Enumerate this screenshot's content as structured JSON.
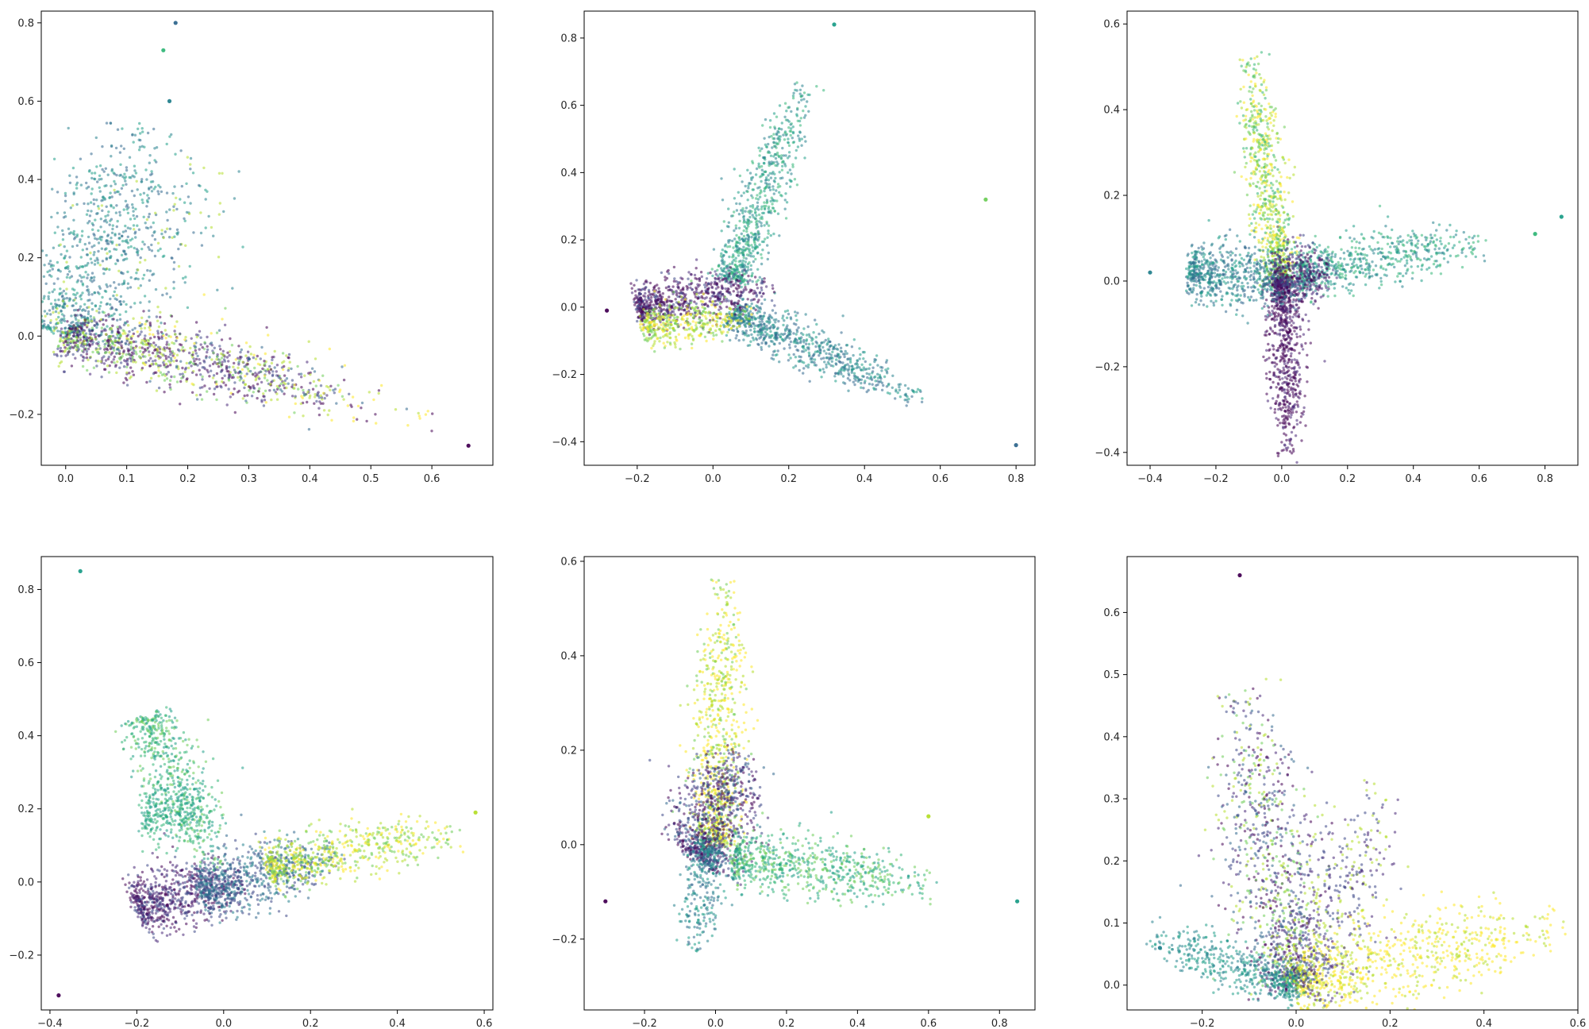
{
  "colors": {
    "viridis": [
      "#440154",
      "#482878",
      "#3e4989",
      "#31688e",
      "#26828e",
      "#1f9e89",
      "#35b779",
      "#6ece58",
      "#b5de2b",
      "#fde725"
    ]
  },
  "chart_data": [
    {
      "type": "scatter",
      "title": "",
      "xlabel": "",
      "ylabel": "",
      "xlim": [
        -0.04,
        0.7
      ],
      "ylim": [
        -0.33,
        0.83
      ],
      "xticks": [
        "0.0",
        "0.1",
        "0.2",
        "0.3",
        "0.4",
        "0.5",
        "0.6"
      ],
      "xtick_values": [
        0,
        0.1,
        0.2,
        0.3,
        0.4,
        0.5,
        0.6
      ],
      "yticks": [
        "−0.2",
        "0.0",
        "0.2",
        "0.4",
        "0.6",
        "0.8"
      ],
      "ytick_values": [
        -0.2,
        0,
        0.2,
        0.4,
        0.6,
        0.8
      ],
      "grid": false,
      "arms": [
        {
          "from": [
            0,
            0
          ],
          "to": [
            0.1,
            0.43
          ],
          "n": 700,
          "spread": 0.045,
          "colors": [
            4,
            5,
            3
          ]
        },
        {
          "from": [
            0,
            0
          ],
          "to": [
            0.2,
            0.35
          ],
          "n": 300,
          "spread": 0.05,
          "colors": [
            4,
            3,
            5,
            8
          ]
        },
        {
          "from": [
            0,
            0
          ],
          "to": [
            0.36,
            -0.12
          ],
          "n": 900,
          "spread": 0.03,
          "colors": [
            0,
            1,
            2,
            7,
            8
          ]
        },
        {
          "from": [
            0.1,
            0.0
          ],
          "to": [
            0.5,
            -0.18
          ],
          "n": 250,
          "spread": 0.035,
          "colors": [
            0,
            8,
            3,
            9
          ]
        }
      ],
      "outliers": [
        [
          0.18,
          0.8,
          3
        ],
        [
          0.66,
          -0.28,
          0
        ],
        [
          0.16,
          0.73,
          6
        ],
        [
          0.17,
          0.6,
          4
        ]
      ]
    },
    {
      "type": "scatter",
      "title": "",
      "xlabel": "",
      "ylabel": "",
      "xlim": [
        -0.34,
        0.85
      ],
      "ylim": [
        -0.47,
        0.88
      ],
      "xticks": [
        "−0.2",
        "0.0",
        "0.2",
        "0.4",
        "0.6",
        "0.8"
      ],
      "xtick_values": [
        -0.2,
        0,
        0.2,
        0.4,
        0.6,
        0.8
      ],
      "yticks": [
        "−0.4",
        "−0.2",
        "0.0",
        "0.2",
        "0.4",
        "0.6",
        "0.8"
      ],
      "ytick_values": [
        -0.4,
        -0.2,
        0,
        0.2,
        0.4,
        0.6,
        0.8
      ],
      "grid": false,
      "arms": [
        {
          "from": [
            0.05,
            0.08
          ],
          "to": [
            0.2,
            0.55
          ],
          "n": 700,
          "spread": 0.025,
          "colors": [
            5,
            4,
            6
          ]
        },
        {
          "from": [
            0.05,
            -0.02
          ],
          "to": [
            0.45,
            -0.22
          ],
          "n": 750,
          "spread": 0.025,
          "colors": [
            3,
            4,
            5
          ]
        },
        {
          "from": [
            -0.2,
            0.0
          ],
          "to": [
            0.08,
            0.05
          ],
          "n": 700,
          "spread": 0.03,
          "colors": [
            0,
            1,
            0,
            2
          ]
        },
        {
          "from": [
            -0.18,
            -0.06
          ],
          "to": [
            0.05,
            -0.03
          ],
          "n": 400,
          "spread": 0.025,
          "colors": [
            8,
            7,
            9
          ]
        }
      ],
      "outliers": [
        [
          -0.28,
          -0.01,
          0
        ],
        [
          0.8,
          -0.41,
          3
        ],
        [
          0.32,
          0.84,
          5
        ],
        [
          0.72,
          0.32,
          7
        ]
      ]
    },
    {
      "type": "scatter",
      "title": "",
      "xlabel": "",
      "ylabel": "",
      "xlim": [
        -0.47,
        0.9
      ],
      "ylim": [
        -0.43,
        0.63
      ],
      "xticks": [
        "−0.4",
        "−0.2",
        "0.0",
        "0.2",
        "0.4",
        "0.6",
        "0.8"
      ],
      "xtick_values": [
        -0.4,
        -0.2,
        0,
        0.2,
        0.4,
        0.6,
        0.8
      ],
      "yticks": [
        "−0.4",
        "−0.2",
        "0.0",
        "0.2",
        "0.4",
        "0.6"
      ],
      "ytick_values": [
        -0.4,
        -0.2,
        0,
        0.2,
        0.4,
        0.6
      ],
      "grid": false,
      "arms": [
        {
          "from": [
            0.0,
            0.0
          ],
          "to": [
            -0.08,
            0.42
          ],
          "n": 800,
          "spread": 0.025,
          "colors": [
            8,
            7,
            9,
            6
          ]
        },
        {
          "from": [
            0.0,
            0.0
          ],
          "to": [
            0.02,
            -0.33
          ],
          "n": 700,
          "spread": 0.022,
          "colors": [
            0,
            1,
            0
          ]
        },
        {
          "from": [
            -0.28,
            0.02
          ],
          "to": [
            0.02,
            0.0
          ],
          "n": 700,
          "spread": 0.03,
          "colors": [
            4,
            3,
            5
          ]
        },
        {
          "from": [
            0.05,
            0.02
          ],
          "to": [
            0.5,
            0.08
          ],
          "n": 600,
          "spread": 0.025,
          "colors": [
            5,
            6,
            4
          ]
        },
        {
          "from": [
            -0.02,
            0.0
          ],
          "to": [
            0.12,
            0.02
          ],
          "n": 400,
          "spread": 0.03,
          "colors": [
            1,
            0,
            2
          ]
        }
      ],
      "outliers": [
        [
          -0.4,
          0.02,
          4
        ],
        [
          0.85,
          0.15,
          5
        ],
        [
          0.77,
          0.11,
          6
        ]
      ]
    },
    {
      "type": "scatter",
      "title": "",
      "xlabel": "",
      "ylabel": "",
      "xlim": [
        -0.42,
        0.62
      ],
      "ylim": [
        -0.35,
        0.89
      ],
      "xticks": [
        "−0.4",
        "−0.2",
        "0.0",
        "0.2",
        "0.4",
        "0.6"
      ],
      "xtick_values": [
        -0.4,
        -0.2,
        0,
        0.2,
        0.4,
        0.6
      ],
      "yticks": [
        "−0.2",
        "0.0",
        "0.2",
        "0.4",
        "0.6",
        "0.8"
      ],
      "ytick_values": [
        -0.2,
        0,
        0.2,
        0.4,
        0.6,
        0.8
      ],
      "grid": false,
      "arms": [
        {
          "from": [
            -0.2,
            -0.07
          ],
          "to": [
            0.0,
            0.0
          ],
          "n": 700,
          "spread": 0.035,
          "colors": [
            0,
            1,
            2
          ]
        },
        {
          "from": [
            -0.05,
            -0.03
          ],
          "to": [
            0.2,
            0.06
          ],
          "n": 700,
          "spread": 0.035,
          "colors": [
            2,
            3,
            4
          ]
        },
        {
          "from": [
            0.1,
            0.04
          ],
          "to": [
            0.45,
            0.12
          ],
          "n": 600,
          "spread": 0.03,
          "colors": [
            8,
            7,
            9
          ]
        },
        {
          "from": [
            -0.18,
            0.45
          ],
          "to": [
            -0.05,
            0.12
          ],
          "n": 500,
          "spread": 0.03,
          "colors": [
            6,
            5,
            7
          ]
        },
        {
          "from": [
            -0.18,
            0.2
          ],
          "to": [
            -0.05,
            0.18
          ],
          "n": 300,
          "spread": 0.04,
          "colors": [
            6,
            5
          ]
        }
      ],
      "outliers": [
        [
          -0.33,
          0.85,
          5
        ],
        [
          -0.38,
          -0.31,
          0
        ],
        [
          0.58,
          0.19,
          8
        ]
      ]
    },
    {
      "type": "scatter",
      "title": "",
      "xlabel": "",
      "ylabel": "",
      "xlim": [
        -0.37,
        0.9
      ],
      "ylim": [
        -0.35,
        0.61
      ],
      "xticks": [
        "−0.2",
        "0.0",
        "0.2",
        "0.4",
        "0.6",
        "0.8"
      ],
      "xtick_values": [
        -0.2,
        0,
        0.2,
        0.4,
        0.6,
        0.8
      ],
      "yticks": [
        "−0.2",
        "0.0",
        "0.2",
        "0.4",
        "0.6"
      ],
      "ytick_values": [
        -0.2,
        0,
        0.2,
        0.4,
        0.6
      ],
      "grid": false,
      "arms": [
        {
          "from": [
            0.0,
            0.0
          ],
          "to": [
            0.02,
            0.45
          ],
          "n": 800,
          "spread": 0.03,
          "colors": [
            9,
            8,
            9,
            7
          ]
        },
        {
          "from": [
            -0.05,
            -0.03
          ],
          "to": [
            0.05,
            0.15
          ],
          "n": 900,
          "spread": 0.045,
          "colors": [
            0,
            1,
            2,
            3
          ]
        },
        {
          "from": [
            0.05,
            -0.03
          ],
          "to": [
            0.5,
            -0.07
          ],
          "n": 700,
          "spread": 0.025,
          "colors": [
            6,
            5,
            7
          ]
        },
        {
          "from": [
            -0.02,
            0.0
          ],
          "to": [
            -0.05,
            -0.18
          ],
          "n": 300,
          "spread": 0.025,
          "colors": [
            4,
            5,
            3
          ]
        }
      ],
      "outliers": [
        [
          -0.31,
          -0.12,
          0
        ],
        [
          0.85,
          -0.12,
          5
        ],
        [
          0.6,
          0.06,
          8
        ]
      ]
    },
    {
      "type": "scatter",
      "title": "",
      "xlabel": "",
      "ylabel": "",
      "xlim": [
        -0.36,
        0.6
      ],
      "ylim": [
        -0.04,
        0.69
      ],
      "xticks": [
        "−0.2",
        "0.0",
        "0.2",
        "0.4",
        "0.6"
      ],
      "xtick_values": [
        -0.2,
        0,
        0.2,
        0.4,
        0.6
      ],
      "yticks": [
        "0.0",
        "0.1",
        "0.2",
        "0.3",
        "0.4",
        "0.5",
        "0.6"
      ],
      "ytick_values": [
        0,
        0.1,
        0.2,
        0.3,
        0.4,
        0.5,
        0.6
      ],
      "grid": false,
      "arms": [
        {
          "from": [
            0.0,
            0.0
          ],
          "to": [
            -0.1,
            0.38
          ],
          "n": 1000,
          "spread": 0.04,
          "colors": [
            0,
            1,
            2,
            3,
            7,
            8
          ]
        },
        {
          "from": [
            0.0,
            0.0
          ],
          "to": [
            0.45,
            0.08
          ],
          "n": 800,
          "spread": 0.03,
          "colors": [
            9,
            8,
            9
          ]
        },
        {
          "from": [
            0.0,
            0.0
          ],
          "to": [
            -0.25,
            0.06
          ],
          "n": 500,
          "spread": 0.015,
          "colors": [
            5,
            4
          ]
        },
        {
          "from": [
            0.0,
            0.0
          ],
          "to": [
            0.15,
            0.25
          ],
          "n": 500,
          "spread": 0.04,
          "colors": [
            1,
            2,
            8
          ]
        }
      ],
      "outliers": [
        [
          -0.12,
          0.66,
          0
        ],
        [
          -0.29,
          0.06,
          4
        ]
      ]
    }
  ]
}
